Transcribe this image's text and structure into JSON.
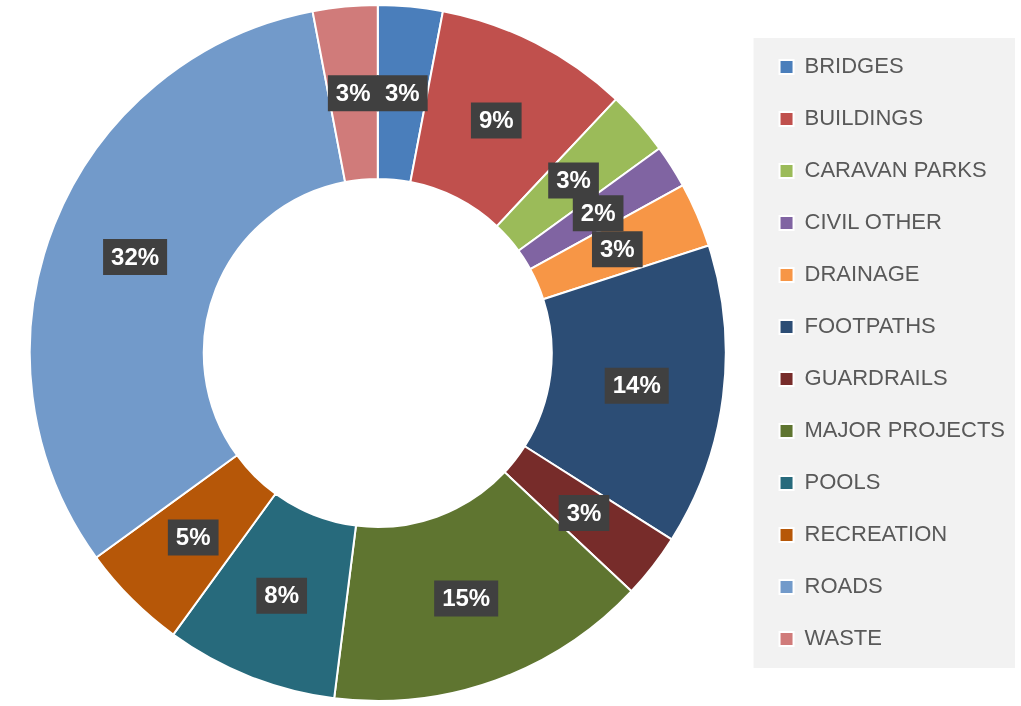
{
  "chart_data": {
    "type": "donut",
    "categories": [
      "BRIDGES",
      "BUILDINGS",
      "CARAVAN PARKS",
      "CIVIL OTHER",
      "DRAINAGE",
      "FOOTPATHS",
      "GUARDRAILS",
      "MAJOR PROJECTS",
      "POOLS",
      "RECREATION",
      "ROADS",
      "WASTE"
    ],
    "values": [
      3,
      9,
      3,
      2,
      3,
      14,
      3,
      15,
      8,
      5,
      32,
      3
    ],
    "value_labels": [
      "3%",
      "9%",
      "3%",
      "2%",
      "3%",
      "14%",
      "3%",
      "15%",
      "8%",
      "5%",
      "32%",
      "3%"
    ],
    "colors": [
      "#4a7ebb",
      "#c0504d",
      "#9bbb59",
      "#8064a2",
      "#f79646",
      "#2c4d75",
      "#772c2a",
      "#5f7530",
      "#276a7c",
      "#b65708",
      "#729aca",
      "#d07b7a"
    ],
    "legend": "right"
  }
}
